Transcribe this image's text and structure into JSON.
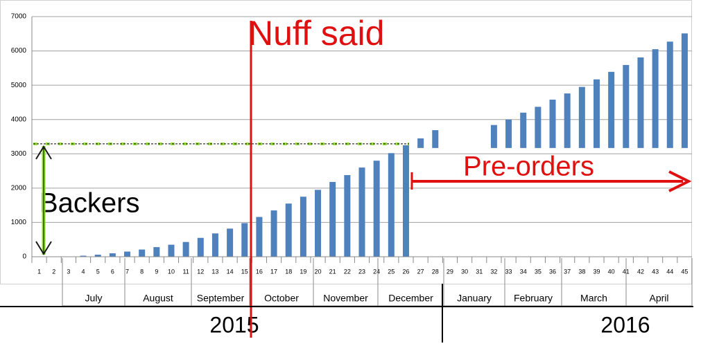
{
  "chart_data": {
    "type": "bar",
    "categories": [
      "1",
      "2",
      "3",
      "4",
      "5",
      "6",
      "7",
      "8",
      "9",
      "10",
      "11",
      "12",
      "13",
      "14",
      "15",
      "16",
      "17",
      "18",
      "19",
      "20",
      "21",
      "22",
      "23",
      "24",
      "25",
      "26",
      "27",
      "28",
      "29",
      "30",
      "31",
      "32",
      "33",
      "34",
      "35",
      "36",
      "37",
      "38",
      "39",
      "40",
      "41",
      "42",
      "43",
      "44",
      "45"
    ],
    "values": [
      0,
      0,
      10,
      30,
      60,
      100,
      150,
      210,
      280,
      350,
      430,
      550,
      680,
      820,
      980,
      1160,
      1350,
      1550,
      1750,
      1950,
      2180,
      2380,
      2600,
      2800,
      3020,
      3250,
      3450,
      3690,
      null,
      null,
      null,
      3840,
      4000,
      4200,
      4370,
      4580,
      4760,
      4950,
      5170,
      5390,
      5590,
      5810,
      6050,
      6270,
      6510
    ],
    "bar_bottoms": [
      0,
      0,
      0,
      0,
      0,
      0,
      0,
      0,
      0,
      0,
      0,
      0,
      0,
      0,
      0,
      0,
      0,
      0,
      0,
      0,
      0,
      0,
      0,
      0,
      0,
      0,
      3170,
      3170,
      null,
      null,
      null,
      3170,
      3170,
      3170,
      3170,
      3170,
      3170,
      3170,
      3170,
      3170,
      3170,
      3170,
      3170,
      3170,
      3170
    ],
    "color": "#4f81bd",
    "ylim": [
      0,
      7000
    ],
    "yticks": [
      0,
      1000,
      2000,
      3000,
      4000,
      5000,
      6000,
      7000
    ],
    "grid": true,
    "months": [
      "July",
      "August",
      "September",
      "October",
      "November",
      "December",
      "January",
      "February",
      "March",
      "April"
    ],
    "years": [
      "2015",
      "2016"
    ],
    "reference_line": 3290,
    "annotations": {
      "nuff_said": "Nuff said",
      "pre_orders": "Pre-orders",
      "backers": "Backers"
    }
  }
}
